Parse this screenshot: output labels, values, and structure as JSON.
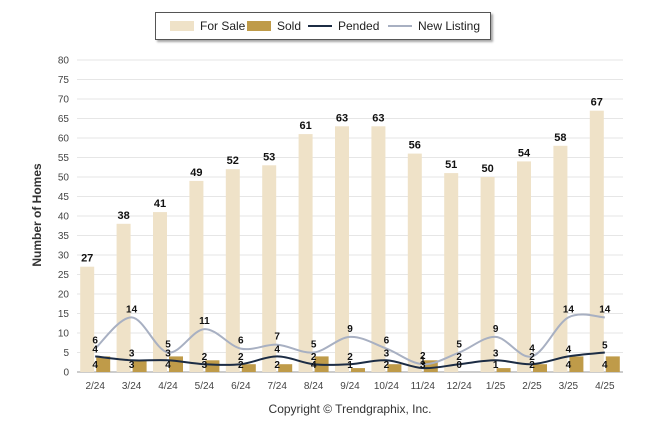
{
  "chart_data": {
    "type": "bar",
    "ylabel": "Number of Homes",
    "xlabel": "",
    "ylim": [
      0,
      80
    ],
    "ytick_step": 5,
    "grid": true,
    "legend_position": "top",
    "categories": [
      "2/24",
      "3/24",
      "4/24",
      "5/24",
      "6/24",
      "7/24",
      "8/24",
      "9/24",
      "10/24",
      "11/24",
      "12/24",
      "1/25",
      "2/25",
      "3/25",
      "4/25"
    ],
    "series": [
      {
        "name": "For Sale",
        "kind": "bar",
        "color": "#efe2c8",
        "values": [
          27,
          38,
          41,
          49,
          52,
          53,
          61,
          63,
          63,
          56,
          51,
          50,
          54,
          58,
          67
        ]
      },
      {
        "name": "Sold",
        "kind": "bar",
        "color": "#bf9b49",
        "values": [
          4,
          3,
          4,
          3,
          2,
          2,
          4,
          1,
          2,
          3,
          0,
          1,
          2,
          4,
          4
        ]
      },
      {
        "name": "Pended",
        "kind": "line",
        "color": "#1c2c44",
        "values": [
          4,
          3,
          3,
          2,
          2,
          4,
          2,
          2,
          3,
          1,
          2,
          3,
          2,
          4,
          5
        ]
      },
      {
        "name": "New Listing",
        "kind": "line",
        "color": "#a8b0c2",
        "values": [
          6,
          14,
          5,
          11,
          6,
          7,
          5,
          9,
          6,
          2,
          5,
          9,
          4,
          14,
          14
        ]
      }
    ]
  },
  "copyright": "Copyright © Trendgraphix, Inc."
}
